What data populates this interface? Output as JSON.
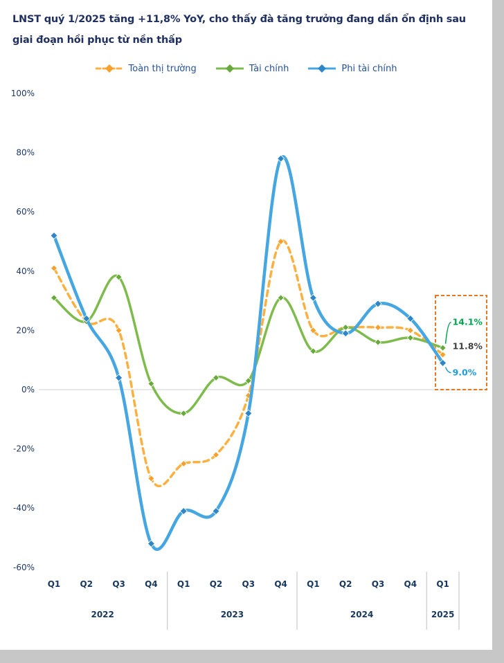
{
  "page": {
    "title": "LNST quý 1/2025 tăng +11,8% YoY, cho thấy đà tăng trưởng đang dần ổn định sau giai đoạn hồi phục từ nền thấp"
  },
  "colors": {
    "title": "#1F3061",
    "axis_label": "#17375E",
    "grid": "#D9D9D9",
    "divider": "#BFBFBF",
    "highlight_box": "#E87722",
    "page_edge": "#C7C7C7"
  },
  "chart_data": {
    "type": "line",
    "title": "LNST quý 1/2025 tăng +11,8% YoY",
    "x_labels": [
      "Q1",
      "Q2",
      "Q3",
      "Q4",
      "Q1",
      "Q2",
      "Q3",
      "Q4",
      "Q1",
      "Q2",
      "Q3",
      "Q4",
      "Q1"
    ],
    "year_groups": [
      {
        "label": "2022",
        "count": 4
      },
      {
        "label": "2023",
        "count": 4
      },
      {
        "label": "2024",
        "count": 4
      },
      {
        "label": "2025",
        "count": 1
      }
    ],
    "ylim": [
      -60,
      100
    ],
    "ytick_step": 20,
    "ytick_labels": [
      "100%",
      "80%",
      "60%",
      "40%",
      "20%",
      "0%",
      "-20%",
      "-40%",
      "-60%"
    ],
    "grid": "zero-line-only",
    "legend_position": "top",
    "series": [
      {
        "name": "Toàn thị trường",
        "color": "#FBB040",
        "marker_color": "#F5A12B",
        "dashed": true,
        "values": [
          41,
          23,
          20,
          -30,
          -25,
          -22,
          -2,
          50,
          20,
          21,
          21,
          20,
          11.8
        ],
        "end_label": {
          "text": "11.8%",
          "color": "#404040",
          "dy": -12
        }
      },
      {
        "name": "Tài chính",
        "color": "#7DBB4C",
        "marker_color": "#67A93B",
        "dashed": false,
        "values": [
          31,
          23,
          38,
          2,
          -8,
          4,
          3,
          31,
          13,
          21,
          16,
          17.5,
          14.1
        ],
        "end_label": {
          "text": "14.1%",
          "color": "#00A550",
          "dy": -37
        }
      },
      {
        "name": "Phi tài chính",
        "color": "#45A6E1",
        "marker_color": "#2E86C8",
        "dashed": false,
        "values": [
          52,
          24,
          4,
          -52,
          -41,
          -41,
          -8,
          78,
          31,
          19,
          29,
          24,
          9.0
        ],
        "end_label": {
          "text": "9.0%",
          "color": "#1F9CD8",
          "dy": 14
        }
      }
    ]
  }
}
